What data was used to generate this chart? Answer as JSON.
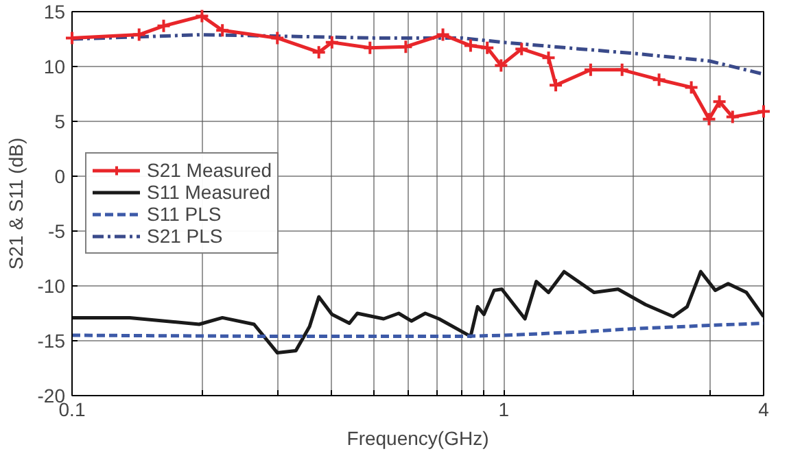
{
  "chart_data": {
    "type": "line",
    "xlabel": "Frequency(GHz)",
    "ylabel": "S21 & S11 (dB)",
    "log": "x",
    "xlim": [
      0.1,
      4
    ],
    "ylim": [
      -20,
      15
    ],
    "xticks": [
      {
        "value": 0.1,
        "label": "0.1"
      },
      {
        "value": 0.2,
        "label": null
      },
      {
        "value": 0.3,
        "label": null
      },
      {
        "value": 0.4,
        "label": null
      },
      {
        "value": 0.5,
        "label": null
      },
      {
        "value": 0.6,
        "label": null
      },
      {
        "value": 0.7,
        "label": null
      },
      {
        "value": 0.8,
        "label": null
      },
      {
        "value": 0.9,
        "label": null
      },
      {
        "value": 1,
        "label": "1"
      },
      {
        "value": 2,
        "label": null
      },
      {
        "value": 3,
        "label": null
      },
      {
        "value": 4,
        "label": "4"
      }
    ],
    "yticks": [
      -20,
      -15,
      -10,
      -5,
      0,
      5,
      10,
      15
    ],
    "grid": true,
    "legend": "left",
    "series": [
      {
        "name": "S21 Measured",
        "color": "#e8262a",
        "marker": "cross",
        "line_style": "solid",
        "x": [
          0.1,
          0.143,
          0.163,
          0.2,
          0.223,
          0.299,
          0.373,
          0.4,
          0.49,
          0.593,
          0.723,
          0.838,
          0.916,
          0.986,
          1.1,
          1.27,
          1.32,
          1.59,
          1.88,
          2.29,
          2.72,
          2.99,
          3.16,
          3.39,
          4
        ],
        "values": [
          12.6,
          12.9,
          13.7,
          14.6,
          13.3,
          12.6,
          11.3,
          12.2,
          11.7,
          11.8,
          12.9,
          11.9,
          11.7,
          10.1,
          11.6,
          10.8,
          8.3,
          9.7,
          9.7,
          8.8,
          8.1,
          5.2,
          6.8,
          5.4,
          5.9
        ]
      },
      {
        "name": "S11 Measured",
        "color": "#1a1a1a",
        "marker": "none",
        "line_style": "solid",
        "x": [
          0.1,
          0.136,
          0.197,
          0.223,
          0.264,
          0.299,
          0.33,
          0.355,
          0.373,
          0.4,
          0.439,
          0.458,
          0.527,
          0.571,
          0.611,
          0.658,
          0.708,
          0.838,
          0.87,
          0.9,
          0.95,
          0.99,
          1.12,
          1.19,
          1.27,
          1.38,
          1.62,
          1.84,
          2.13,
          2.47,
          2.66,
          2.86,
          3.09,
          3.31,
          3.65,
          4
        ],
        "values": [
          -12.9,
          -12.9,
          -13.5,
          -12.9,
          -13.5,
          -16.1,
          -15.9,
          -13.7,
          -11,
          -12.6,
          -13.4,
          -12.5,
          -13,
          -12.5,
          -13.2,
          -12.5,
          -13,
          -14.6,
          -11.9,
          -12.6,
          -10.4,
          -10.3,
          -13,
          -9.6,
          -10.6,
          -8.7,
          -10.6,
          -10.3,
          -11.7,
          -12.8,
          -11.9,
          -8.7,
          -10.4,
          -9.8,
          -10.6,
          -12.8
        ]
      },
      {
        "name": "S11 PLS",
        "color": "#3d5aa8",
        "marker": "none",
        "line_style": "dashed",
        "x": [
          0.1,
          0.3,
          0.5,
          0.8,
          1,
          1.5,
          2,
          3,
          4
        ],
        "values": [
          -14.5,
          -14.6,
          -14.6,
          -14.6,
          -14.5,
          -14.2,
          -13.9,
          -13.6,
          -13.4
        ]
      },
      {
        "name": "S21 PLS",
        "color": "#3a4a8a",
        "marker": "none",
        "line_style": "dashdot",
        "x": [
          0.1,
          0.2,
          0.5,
          0.8,
          1,
          1.5,
          2,
          3,
          4
        ],
        "values": [
          12.5,
          12.9,
          12.6,
          12.6,
          12.2,
          11.6,
          11.2,
          10.5,
          9.3
        ]
      }
    ]
  }
}
